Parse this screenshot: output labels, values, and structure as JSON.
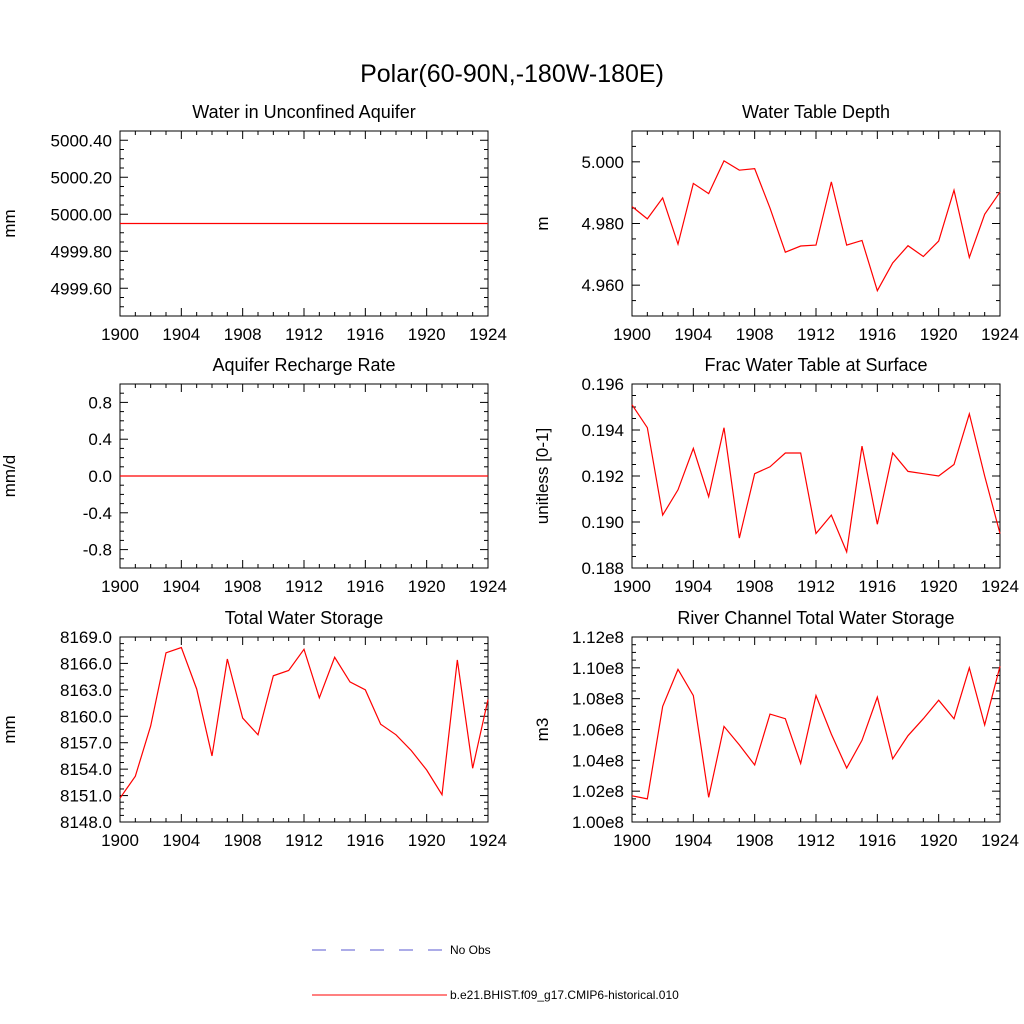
{
  "figure": {
    "title": "Polar(60-90N,-180W-180E)"
  },
  "colors": {
    "model_line": "#ff0000",
    "obs_line": "#5a5ad0",
    "axis": "#000000"
  },
  "legend": {
    "obs_label": "No Obs",
    "model_label": "b.e21.BHIST.f09_g17.CMIP6-historical.010"
  },
  "chart_data": [
    {
      "type": "line",
      "title": "Water in Unconfined Aquifer",
      "xlabel": "",
      "ylabel": "mm",
      "xlim": [
        1900,
        1924
      ],
      "ylim": [
        4999.45,
        5000.45
      ],
      "x_ticks": [
        1900,
        1904,
        1908,
        1912,
        1916,
        1920,
        1924
      ],
      "x_tick_labels": [
        "1900",
        "1904",
        "1908",
        "1912",
        "1916",
        "1920",
        "1924"
      ],
      "y_ticks": [
        4999.6,
        4999.8,
        5000.0,
        5000.2,
        5000.4
      ],
      "y_tick_labels": [
        "4999.60",
        "4999.80",
        "5000.00",
        "5000.20",
        "5000.40"
      ],
      "x": [
        1900,
        1901,
        1902,
        1903,
        1904,
        1905,
        1906,
        1907,
        1908,
        1909,
        1910,
        1911,
        1912,
        1913,
        1914,
        1915,
        1916,
        1917,
        1918,
        1919,
        1920,
        1921,
        1922,
        1923,
        1924
      ],
      "series": [
        {
          "values": [
            4999.95,
            4999.95,
            4999.95,
            4999.95,
            4999.95,
            4999.95,
            4999.95,
            4999.95,
            4999.95,
            4999.95,
            4999.95,
            4999.95,
            4999.95,
            4999.95,
            4999.95,
            4999.95,
            4999.95,
            4999.95,
            4999.95,
            4999.95,
            4999.95,
            4999.95,
            4999.95,
            4999.95,
            4999.95
          ]
        }
      ]
    },
    {
      "type": "line",
      "title": "Water Table Depth",
      "xlabel": "",
      "ylabel": "m",
      "xlim": [
        1900,
        1924
      ],
      "ylim": [
        4.95,
        5.01
      ],
      "x_ticks": [
        1900,
        1904,
        1908,
        1912,
        1916,
        1920,
        1924
      ],
      "x_tick_labels": [
        "1900",
        "1904",
        "1908",
        "1912",
        "1916",
        "1920",
        "1924"
      ],
      "y_ticks": [
        4.96,
        4.98,
        5.0
      ],
      "y_tick_labels": [
        "4.960",
        "4.980",
        "5.000"
      ],
      "x": [
        1900,
        1901,
        1902,
        1903,
        1904,
        1905,
        1906,
        1907,
        1908,
        1909,
        1910,
        1911,
        1912,
        1913,
        1914,
        1915,
        1916,
        1917,
        1918,
        1919,
        1920,
        1921,
        1922,
        1923,
        1924
      ],
      "series": [
        {
          "values": [
            4.9855,
            4.9815,
            4.9883,
            4.9733,
            4.993,
            4.9897,
            5.0003,
            4.9973,
            4.9978,
            4.985,
            4.9707,
            4.9727,
            4.973,
            4.9935,
            4.973,
            4.9745,
            4.9582,
            4.9672,
            4.9728,
            4.9693,
            4.9743,
            4.9908,
            4.969,
            4.983,
            4.9902
          ]
        }
      ]
    },
    {
      "type": "line",
      "title": "Aquifer Recharge Rate",
      "xlabel": "",
      "ylabel": "mm/d",
      "xlim": [
        1900,
        1924
      ],
      "ylim": [
        -1.0,
        1.0
      ],
      "x_ticks": [
        1900,
        1904,
        1908,
        1912,
        1916,
        1920,
        1924
      ],
      "x_tick_labels": [
        "1900",
        "1904",
        "1908",
        "1912",
        "1916",
        "1920",
        "1924"
      ],
      "y_ticks": [
        -0.8,
        -0.4,
        0.0,
        0.4,
        0.8
      ],
      "y_tick_labels": [
        "-0.8",
        "-0.4",
        "0.0",
        "0.4",
        "0.8"
      ],
      "x": [
        1900,
        1901,
        1902,
        1903,
        1904,
        1905,
        1906,
        1907,
        1908,
        1909,
        1910,
        1911,
        1912,
        1913,
        1914,
        1915,
        1916,
        1917,
        1918,
        1919,
        1920,
        1921,
        1922,
        1923,
        1924
      ],
      "series": [
        {
          "values": [
            0,
            0,
            0,
            0,
            0,
            0,
            0,
            0,
            0,
            0,
            0,
            0,
            0,
            0,
            0,
            0,
            0,
            0,
            0,
            0,
            0,
            0,
            0,
            0,
            0
          ]
        }
      ]
    },
    {
      "type": "line",
      "title": "Frac Water Table at Surface",
      "xlabel": "",
      "ylabel": "unitless [0-1]",
      "xlim": [
        1900,
        1924
      ],
      "ylim": [
        0.188,
        0.196
      ],
      "x_ticks": [
        1900,
        1904,
        1908,
        1912,
        1916,
        1920,
        1924
      ],
      "x_tick_labels": [
        "1900",
        "1904",
        "1908",
        "1912",
        "1916",
        "1920",
        "1924"
      ],
      "y_ticks": [
        0.188,
        0.19,
        0.192,
        0.194,
        0.196
      ],
      "y_tick_labels": [
        "0.188",
        "0.190",
        "0.192",
        "0.194",
        "0.196"
      ],
      "x": [
        1900,
        1901,
        1902,
        1903,
        1904,
        1905,
        1906,
        1907,
        1908,
        1909,
        1910,
        1911,
        1912,
        1913,
        1914,
        1915,
        1916,
        1917,
        1918,
        1919,
        1920,
        1921,
        1922,
        1923,
        1924
      ],
      "series": [
        {
          "values": [
            0.1951,
            0.1941,
            0.1903,
            0.1914,
            0.1932,
            0.1911,
            0.1941,
            0.1893,
            0.1921,
            0.1924,
            0.193,
            0.193,
            0.1895,
            0.1903,
            0.1887,
            0.1933,
            0.1899,
            0.193,
            0.1922,
            0.1921,
            0.192,
            0.1925,
            0.1947,
            0.192,
            0.1895
          ]
        }
      ]
    },
    {
      "type": "line",
      "title": "Total Water Storage",
      "xlabel": "",
      "ylabel": "mm",
      "xlim": [
        1900,
        1924
      ],
      "ylim": [
        8148.0,
        8169.0
      ],
      "x_ticks": [
        1900,
        1904,
        1908,
        1912,
        1916,
        1920,
        1924
      ],
      "x_tick_labels": [
        "1900",
        "1904",
        "1908",
        "1912",
        "1916",
        "1920",
        "1924"
      ],
      "y_ticks": [
        8148,
        8151,
        8154,
        8157,
        8160,
        8163,
        8166,
        8169
      ],
      "y_tick_labels": [
        "8148.0",
        "8151.0",
        "8154.0",
        "8157.0",
        "8160.0",
        "8163.0",
        "8166.0",
        "8169.0"
      ],
      "x": [
        1900,
        1901,
        1902,
        1903,
        1904,
        1905,
        1906,
        1907,
        1908,
        1909,
        1910,
        1911,
        1912,
        1913,
        1914,
        1915,
        1916,
        1917,
        1918,
        1919,
        1920,
        1921,
        1922,
        1923,
        1924
      ],
      "series": [
        {
          "values": [
            8150.7,
            8153.2,
            8158.9,
            8167.2,
            8167.8,
            8163.1,
            8155.5,
            8166.5,
            8159.8,
            8157.9,
            8164.6,
            8165.2,
            8167.6,
            8162.1,
            8166.7,
            8163.9,
            8163.0,
            8159.1,
            8157.9,
            8156.1,
            8153.9,
            8151.1,
            8166.4,
            8154.1,
            8161.9
          ]
        }
      ]
    },
    {
      "type": "line",
      "title": "River Channel Total Water Storage",
      "xlabel": "",
      "ylabel": "m3",
      "xlim": [
        1900,
        1924
      ],
      "ylim": [
        100000000,
        112000000
      ],
      "x_ticks": [
        1900,
        1904,
        1908,
        1912,
        1916,
        1920,
        1924
      ],
      "x_tick_labels": [
        "1900",
        "1904",
        "1908",
        "1912",
        "1916",
        "1920",
        "1924"
      ],
      "y_ticks": [
        100000000,
        102000000,
        104000000,
        106000000,
        108000000,
        110000000,
        112000000
      ],
      "y_tick_labels": [
        "1.00e8",
        "1.02e8",
        "1.04e8",
        "1.06e8",
        "1.08e8",
        "1.10e8",
        "1.12e8"
      ],
      "x": [
        1900,
        1901,
        1902,
        1903,
        1904,
        1905,
        1906,
        1907,
        1908,
        1909,
        1910,
        1911,
        1912,
        1913,
        1914,
        1915,
        1916,
        1917,
        1918,
        1919,
        1920,
        1921,
        1922,
        1923,
        1924
      ],
      "series": [
        {
          "values": [
            101700000,
            101500000,
            107500000,
            109900000,
            108200000,
            101600000,
            106200000,
            105000000,
            103700000,
            107000000,
            106700000,
            103800000,
            108200000,
            105700000,
            103500000,
            105300000,
            108100000,
            104100000,
            105600000,
            106700000,
            107900000,
            106700000,
            110000000,
            106300000,
            110100000
          ]
        }
      ]
    }
  ]
}
